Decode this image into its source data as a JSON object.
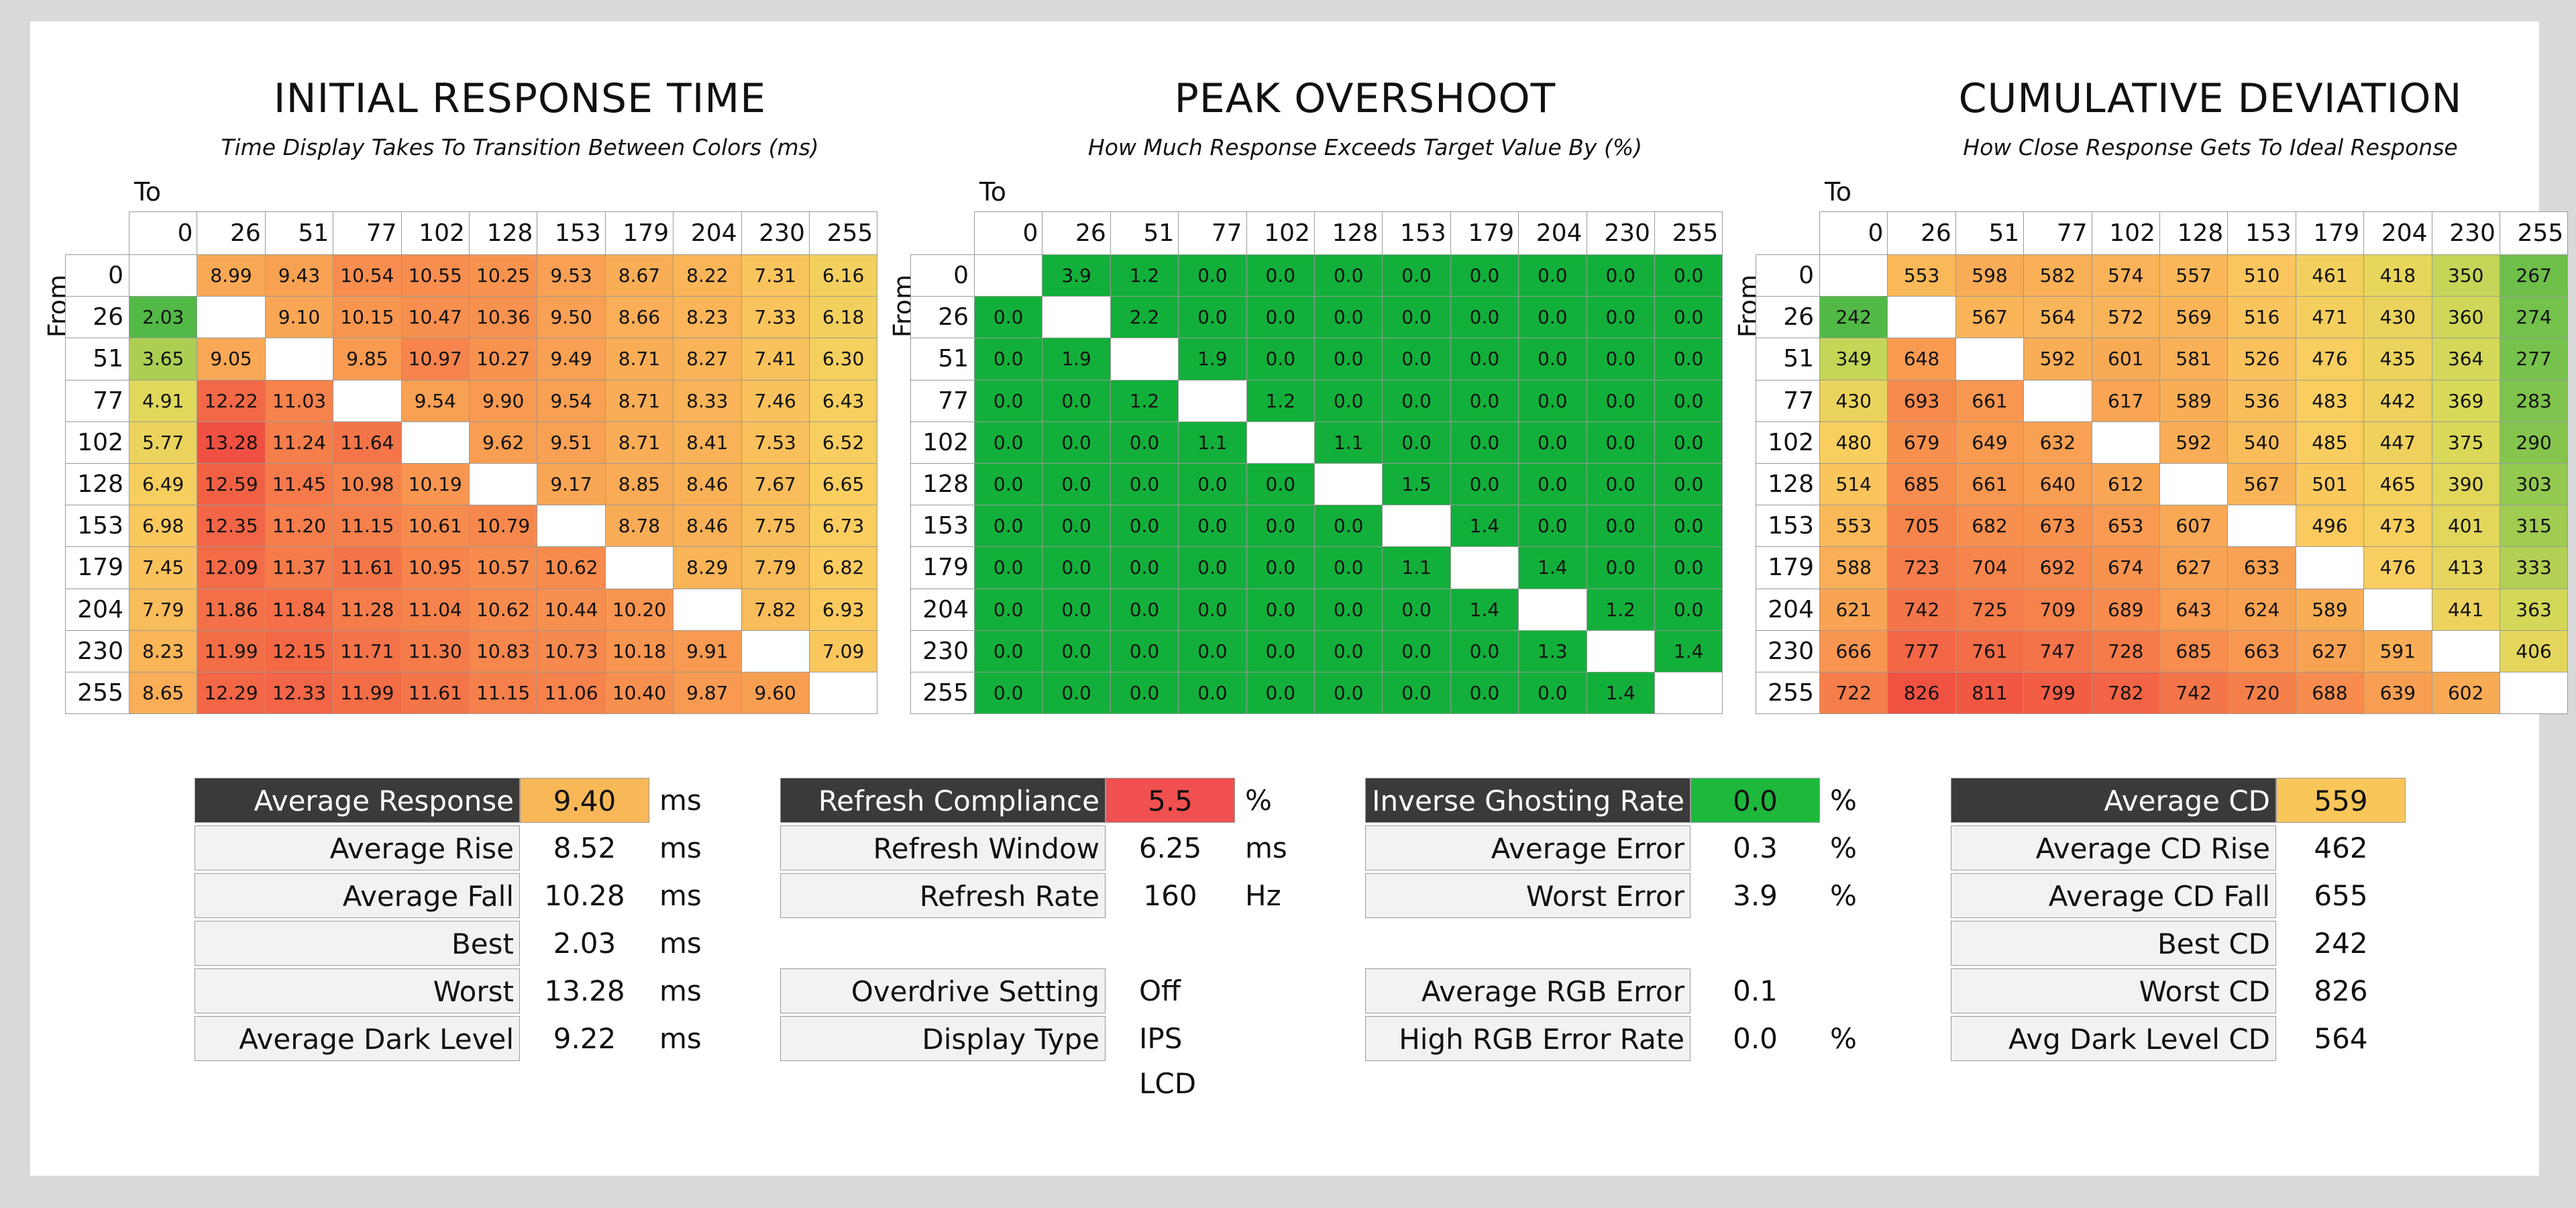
{
  "chart_data": [
    {
      "type": "heatmap",
      "title": "INITIAL RESPONSE TIME",
      "subtitle": "Time Display Takes To Transition Between Colors (ms)",
      "xlabel": "To",
      "ylabel": "From",
      "categories": [
        "0",
        "26",
        "51",
        "77",
        "102",
        "128",
        "153",
        "179",
        "204",
        "230",
        "255"
      ],
      "matrix": [
        [
          null,
          "8.99",
          "9.43",
          "10.54",
          "10.55",
          "10.25",
          "9.53",
          "8.67",
          "8.22",
          "7.31",
          "6.16"
        ],
        [
          "2.03",
          null,
          "9.10",
          "10.15",
          "10.47",
          "10.36",
          "9.50",
          "8.66",
          "8.23",
          "7.33",
          "6.18"
        ],
        [
          "3.65",
          "9.05",
          null,
          "9.85",
          "10.97",
          "10.27",
          "9.49",
          "8.71",
          "8.27",
          "7.41",
          "6.30"
        ],
        [
          "4.91",
          "12.22",
          "11.03",
          null,
          "9.54",
          "9.90",
          "9.54",
          "8.71",
          "8.33",
          "7.46",
          "6.43"
        ],
        [
          "5.77",
          "13.28",
          "11.24",
          "11.64",
          null,
          "9.62",
          "9.51",
          "8.71",
          "8.41",
          "7.53",
          "6.52"
        ],
        [
          "6.49",
          "12.59",
          "11.45",
          "10.98",
          "10.19",
          null,
          "9.17",
          "8.85",
          "8.46",
          "7.67",
          "6.65"
        ],
        [
          "6.98",
          "12.35",
          "11.20",
          "11.15",
          "10.61",
          "10.79",
          null,
          "8.78",
          "8.46",
          "7.75",
          "6.73"
        ],
        [
          "7.45",
          "12.09",
          "11.37",
          "11.61",
          "10.95",
          "10.57",
          "10.62",
          null,
          "8.29",
          "7.79",
          "6.82"
        ],
        [
          "7.79",
          "11.86",
          "11.84",
          "11.28",
          "11.04",
          "10.62",
          "10.44",
          "10.20",
          null,
          "7.82",
          "6.93"
        ],
        [
          "8.23",
          "11.99",
          "12.15",
          "11.71",
          "11.30",
          "10.83",
          "10.73",
          "10.18",
          "9.91",
          null,
          "7.09"
        ],
        [
          "8.65",
          "12.29",
          "12.33",
          "11.99",
          "11.61",
          "11.15",
          "11.06",
          "10.40",
          "9.87",
          "9.60",
          null
        ]
      ],
      "scale": {
        "min": 2.0,
        "max": 13.3
      }
    },
    {
      "type": "heatmap",
      "title": "PEAK OVERSHOOT",
      "subtitle": "How Much Response Exceeds Target Value By (%)",
      "xlabel": "To",
      "ylabel": "From",
      "categories": [
        "0",
        "26",
        "51",
        "77",
        "102",
        "128",
        "153",
        "179",
        "204",
        "230",
        "255"
      ],
      "matrix": [
        [
          null,
          "3.9",
          "1.2",
          "0.0",
          "0.0",
          "0.0",
          "0.0",
          "0.0",
          "0.0",
          "0.0",
          "0.0"
        ],
        [
          "0.0",
          null,
          "2.2",
          "0.0",
          "0.0",
          "0.0",
          "0.0",
          "0.0",
          "0.0",
          "0.0",
          "0.0"
        ],
        [
          "0.0",
          "1.9",
          null,
          "1.9",
          "0.0",
          "0.0",
          "0.0",
          "0.0",
          "0.0",
          "0.0",
          "0.0"
        ],
        [
          "0.0",
          "0.0",
          "1.2",
          null,
          "1.2",
          "0.0",
          "0.0",
          "0.0",
          "0.0",
          "0.0",
          "0.0"
        ],
        [
          "0.0",
          "0.0",
          "0.0",
          "1.1",
          null,
          "1.1",
          "0.0",
          "0.0",
          "0.0",
          "0.0",
          "0.0"
        ],
        [
          "0.0",
          "0.0",
          "0.0",
          "0.0",
          "0.0",
          null,
          "1.5",
          "0.0",
          "0.0",
          "0.0",
          "0.0"
        ],
        [
          "0.0",
          "0.0",
          "0.0",
          "0.0",
          "0.0",
          "0.0",
          null,
          "1.4",
          "0.0",
          "0.0",
          "0.0"
        ],
        [
          "0.0",
          "0.0",
          "0.0",
          "0.0",
          "0.0",
          "0.0",
          "1.1",
          null,
          "1.4",
          "0.0",
          "0.0"
        ],
        [
          "0.0",
          "0.0",
          "0.0",
          "0.0",
          "0.0",
          "0.0",
          "0.0",
          "1.4",
          null,
          "1.2",
          "0.0"
        ],
        [
          "0.0",
          "0.0",
          "0.0",
          "0.0",
          "0.0",
          "0.0",
          "0.0",
          "0.0",
          "1.3",
          null,
          "1.4"
        ],
        [
          "0.0",
          "0.0",
          "0.0",
          "0.0",
          "0.0",
          "0.0",
          "0.0",
          "0.0",
          "0.0",
          "1.4",
          null
        ]
      ],
      "scale": {
        "min": 0,
        "max": 100
      }
    },
    {
      "type": "heatmap",
      "title": "CUMULATIVE DEVIATION",
      "subtitle": "How Close Response Gets To Ideal Response",
      "xlabel": "To",
      "ylabel": "From",
      "categories": [
        "0",
        "26",
        "51",
        "77",
        "102",
        "128",
        "153",
        "179",
        "204",
        "230",
        "255"
      ],
      "matrix": [
        [
          null,
          "553",
          "598",
          "582",
          "574",
          "557",
          "510",
          "461",
          "418",
          "350",
          "267"
        ],
        [
          "242",
          null,
          "567",
          "564",
          "572",
          "569",
          "516",
          "471",
          "430",
          "360",
          "274"
        ],
        [
          "349",
          "648",
          null,
          "592",
          "601",
          "581",
          "526",
          "476",
          "435",
          "364",
          "277"
        ],
        [
          "430",
          "693",
          "661",
          null,
          "617",
          "589",
          "536",
          "483",
          "442",
          "369",
          "283"
        ],
        [
          "480",
          "679",
          "649",
          "632",
          null,
          "592",
          "540",
          "485",
          "447",
          "375",
          "290"
        ],
        [
          "514",
          "685",
          "661",
          "640",
          "612",
          null,
          "567",
          "501",
          "465",
          "390",
          "303"
        ],
        [
          "553",
          "705",
          "682",
          "673",
          "653",
          "607",
          null,
          "496",
          "473",
          "401",
          "315"
        ],
        [
          "588",
          "723",
          "704",
          "692",
          "674",
          "627",
          "633",
          null,
          "476",
          "413",
          "333"
        ],
        [
          "621",
          "742",
          "725",
          "709",
          "689",
          "643",
          "624",
          "589",
          null,
          "441",
          "363"
        ],
        [
          "666",
          "777",
          "761",
          "747",
          "728",
          "685",
          "663",
          "627",
          "591",
          null,
          "406"
        ],
        [
          "722",
          "826",
          "811",
          "799",
          "782",
          "742",
          "720",
          "688",
          "639",
          "602",
          null
        ]
      ],
      "scale": {
        "min": 240,
        "max": 830
      }
    }
  ],
  "stats": {
    "response": [
      {
        "label": "Average Response",
        "value": "9.40",
        "unit": "ms"
      },
      {
        "label": "Average Rise",
        "value": "8.52",
        "unit": "ms"
      },
      {
        "label": "Average Fall",
        "value": "10.28",
        "unit": "ms"
      },
      {
        "label": "Best",
        "value": "2.03",
        "unit": "ms"
      },
      {
        "label": "Worst",
        "value": "13.28",
        "unit": "ms"
      },
      {
        "label": "Average Dark Level",
        "value": "9.22",
        "unit": "ms"
      }
    ],
    "refresh": [
      {
        "label": "Refresh Compliance",
        "value": "5.5",
        "unit": "%"
      },
      {
        "label": "Refresh Window",
        "value": "6.25",
        "unit": "ms"
      },
      {
        "label": "Refresh Rate",
        "value": "160",
        "unit": "Hz"
      },
      {
        "label": "Overdrive Setting",
        "value": "Off",
        "unit": ""
      },
      {
        "label": "Display Type",
        "value": "IPS LCD",
        "unit": ""
      }
    ],
    "error": [
      {
        "label": "Inverse Ghosting Rate",
        "value": "0.0",
        "unit": "%"
      },
      {
        "label": "Average Error",
        "value": "0.3",
        "unit": "%"
      },
      {
        "label": "Worst Error",
        "value": "3.9",
        "unit": "%"
      },
      {
        "label": "Average RGB Error",
        "value": "0.1",
        "unit": ""
      },
      {
        "label": "High RGB Error Rate",
        "value": "0.0",
        "unit": "%"
      }
    ],
    "cd": [
      {
        "label": "Average CD",
        "value": "559",
        "unit": ""
      },
      {
        "label": "Average CD Rise",
        "value": "462",
        "unit": ""
      },
      {
        "label": "Average CD Fall",
        "value": "655",
        "unit": ""
      },
      {
        "label": "Best CD",
        "value": "242",
        "unit": ""
      },
      {
        "label": "Worst CD",
        "value": "826",
        "unit": ""
      },
      {
        "label": "Avg Dark Level CD",
        "value": "564",
        "unit": ""
      }
    ]
  },
  "colors": {
    "dark_label_bg": "#3a3a3a",
    "avg_response_bg": "#f8b857",
    "refresh_compliance_bg": "#f05050",
    "inverse_ghosting_bg": "#1db83c",
    "avg_cd_bg": "#f9c65a",
    "overshoot_green": "#12b03a"
  }
}
